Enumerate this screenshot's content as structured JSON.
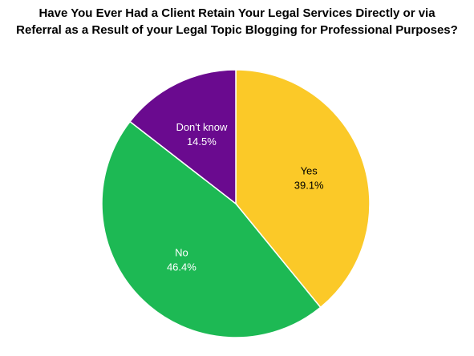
{
  "chart_data": {
    "type": "pie",
    "title_lines": [
      "Have You Ever Had a Client Retain Your Legal Services Directly or via",
      "Referral as a Result of your Legal Topic Blogging for Professional Purposes?"
    ],
    "slices": [
      {
        "label": "Yes",
        "value": 39.1,
        "display": "39.1%",
        "color": "#FBC928",
        "text_color": "#000000"
      },
      {
        "label": "No",
        "value": 46.4,
        "display": "46.4%",
        "color": "#1DB954",
        "text_color": "#ffffff"
      },
      {
        "label": "Don't know",
        "value": 14.5,
        "display": "14.5%",
        "color": "#6A0A8F",
        "text_color": "#ffffff"
      }
    ],
    "start_angle": "12 o'clock",
    "direction": "clockwise",
    "legend": "none"
  }
}
